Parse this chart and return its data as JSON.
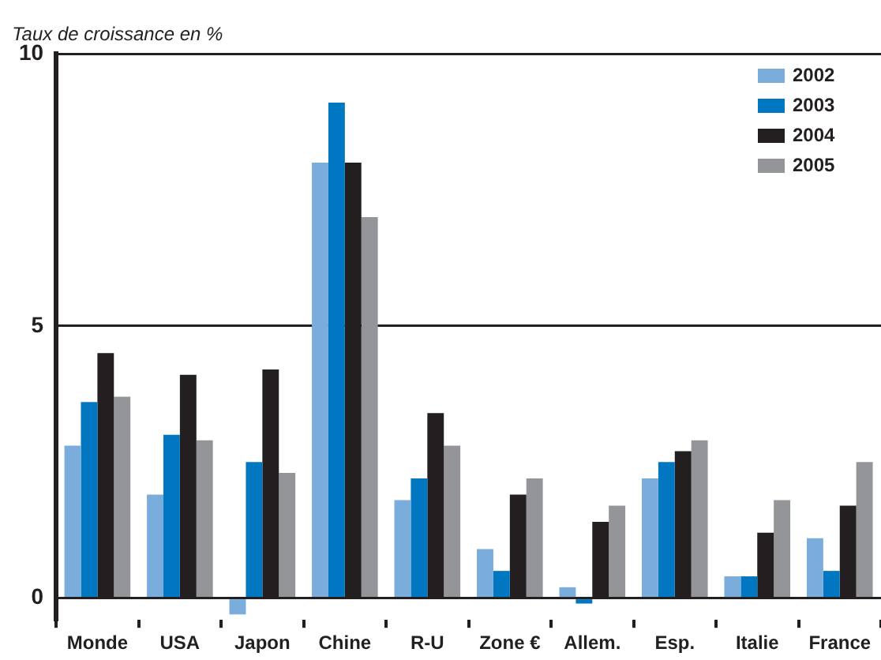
{
  "chart_data": {
    "type": "bar",
    "ylabel": "Taux de croissance en %",
    "categories": [
      "Monde",
      "USA",
      "Japon",
      "Chine",
      "R-U",
      "Zone €",
      "Allem.",
      "Esp.",
      "Italie",
      "France"
    ],
    "series": [
      {
        "name": "2002",
        "color": "#7aacdc",
        "values": [
          2.8,
          1.9,
          -0.3,
          8.0,
          1.8,
          0.9,
          0.2,
          2.2,
          0.4,
          1.1
        ]
      },
      {
        "name": "2003",
        "color": "#0077c0",
        "values": [
          3.6,
          3.0,
          2.5,
          9.1,
          2.2,
          0.5,
          -0.1,
          2.5,
          0.4,
          0.5
        ]
      },
      {
        "name": "2004",
        "color": "#231f20",
        "values": [
          4.5,
          4.1,
          4.2,
          8.0,
          3.4,
          1.9,
          1.4,
          2.7,
          1.2,
          1.7
        ]
      },
      {
        "name": "2005",
        "color": "#939598",
        "values": [
          3.7,
          2.9,
          2.3,
          7.0,
          2.8,
          2.2,
          1.7,
          2.9,
          1.8,
          2.5
        ]
      }
    ],
    "ylim": [
      -0.4,
      10
    ],
    "yticks": [
      0,
      5,
      10
    ],
    "grid": "y",
    "legend": "top right"
  }
}
